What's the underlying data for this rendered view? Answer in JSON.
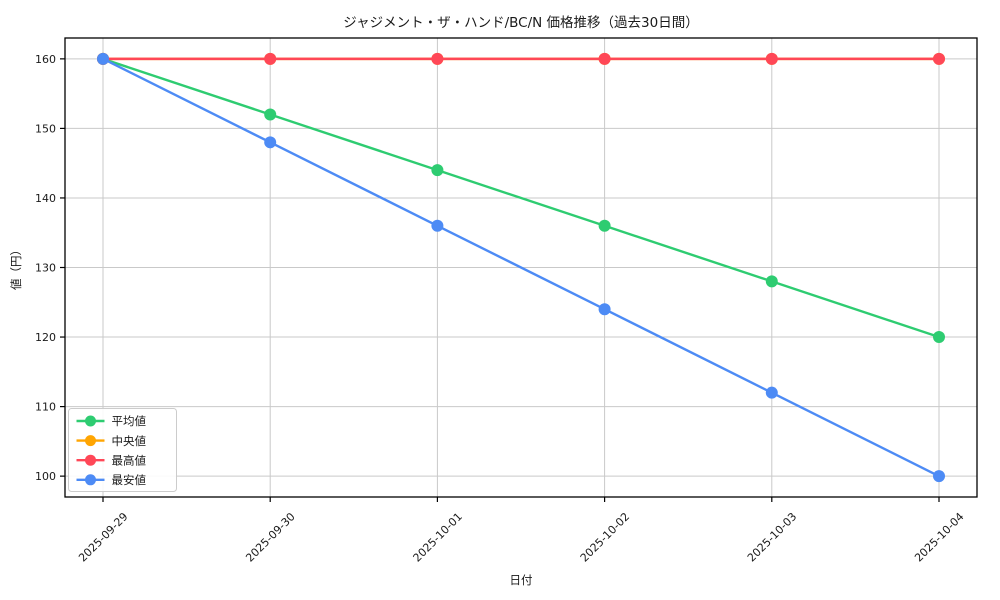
{
  "figure": {
    "background": "#ffffff"
  },
  "chart_data": {
    "type": "line",
    "title": "ジャジメント・ザ・ハンド/BC/N 価格推移（過去30日間）",
    "xlabel": "日付",
    "ylabel": "値（円）",
    "categories": [
      "2025-09-29",
      "2025-09-30",
      "2025-10-01",
      "2025-10-02",
      "2025-10-03",
      "2025-10-04"
    ],
    "series": [
      {
        "name": "平均値",
        "color": "#2ecc71",
        "values": [
          160,
          152,
          144,
          136,
          128,
          120
        ]
      },
      {
        "name": "中央値",
        "color": "#ffa502",
        "values": [
          160,
          160,
          160,
          160,
          160,
          160
        ]
      },
      {
        "name": "最高値",
        "color": "#ff4757",
        "values": [
          160,
          160,
          160,
          160,
          160,
          160
        ]
      },
      {
        "name": "最安値",
        "color": "#4d8bf5",
        "values": [
          160,
          148,
          136,
          124,
          112,
          100
        ]
      }
    ],
    "yticks": [
      100,
      110,
      120,
      130,
      140,
      150,
      160
    ],
    "ylim": [
      97,
      163
    ],
    "grid": true,
    "grid_color": "#c9c9c9",
    "axis_color": "#000000",
    "legend_position": "lower left",
    "legend_border_color": "#cccccc"
  }
}
